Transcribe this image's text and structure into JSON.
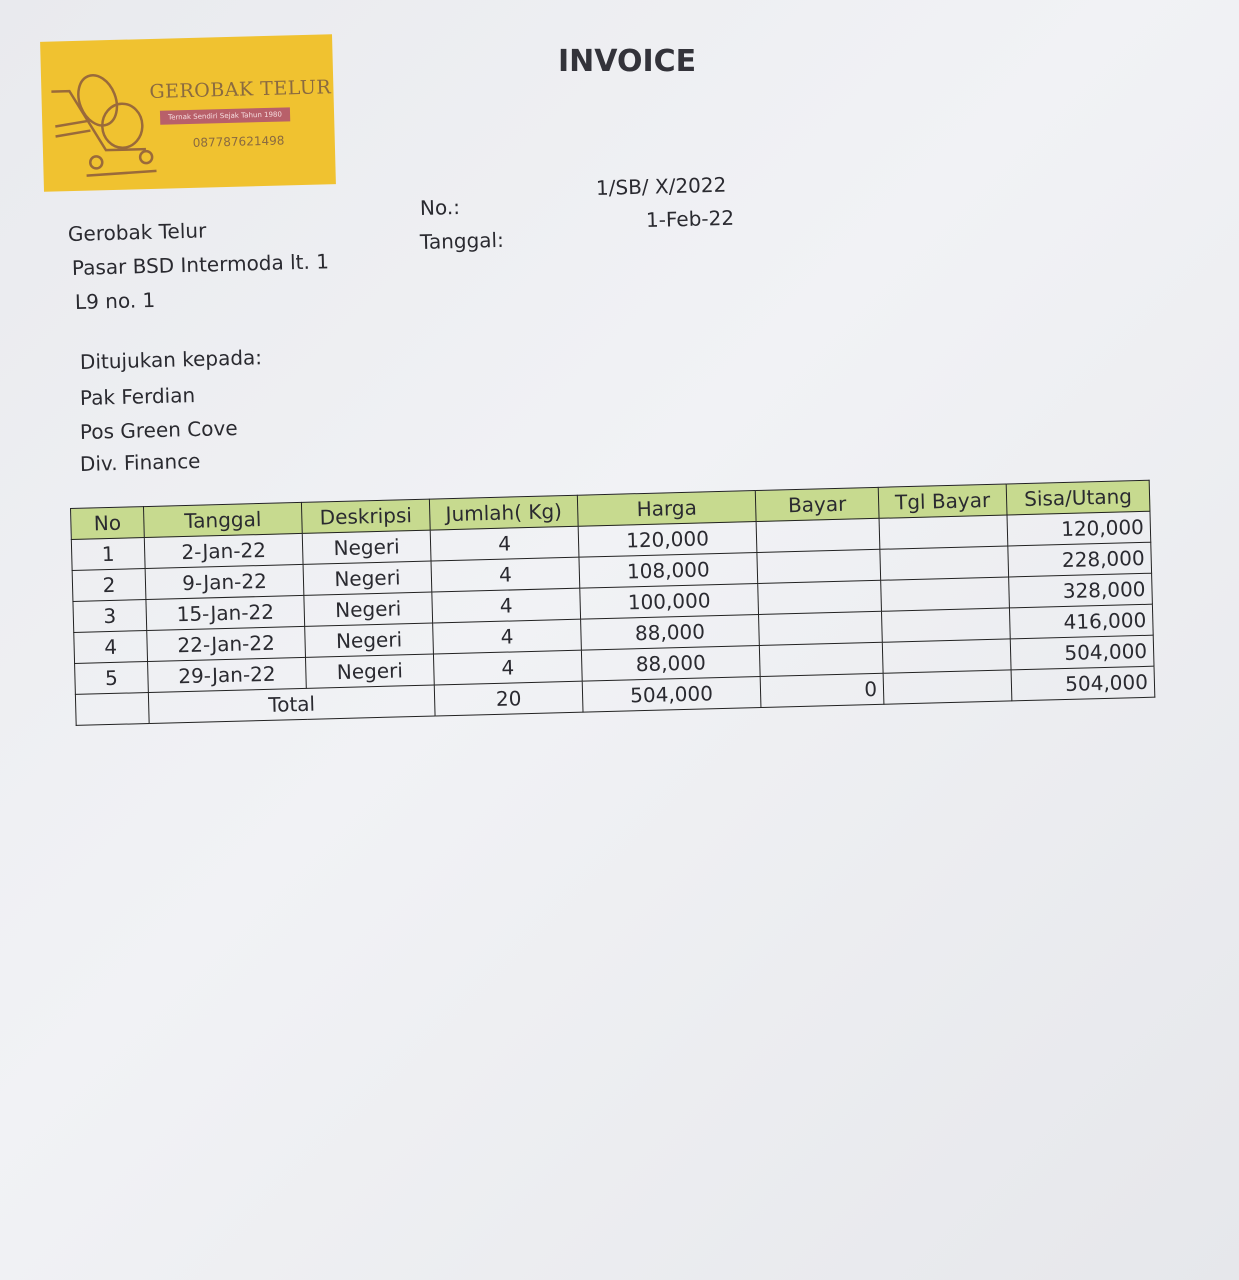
{
  "logo": {
    "name": "GEROBAK TELUR",
    "tagline": "Ternak Sendiri Sejak Tahun 1980",
    "phone": "087787621498",
    "color": "#f0c230"
  },
  "title": "INVOICE",
  "meta": {
    "no_label": "No.:",
    "no_value": "1/SB/ X/2022",
    "date_label": "Tanggal:",
    "date_value": "1-Feb-22"
  },
  "sender": {
    "name": "Gerobak Telur",
    "address1": "Pasar BSD Intermoda lt. 1",
    "address2": "L9 no. 1"
  },
  "recipient": {
    "label": "Ditujukan kepada:",
    "name": "Pak Ferdian",
    "company": "Pos Green Cove",
    "division": "Div. Finance"
  },
  "table": {
    "header_color": "#c7da8f",
    "columns": [
      "No",
      "Tanggal",
      "Deskripsi",
      "Jumlah( Kg)",
      "Harga",
      "Bayar",
      "Tgl Bayar",
      "Sisa/Utang"
    ],
    "rows": [
      [
        "1",
        "2-Jan-22",
        "Negeri",
        "4",
        "120,000",
        "",
        "",
        "120,000"
      ],
      [
        "2",
        "9-Jan-22",
        "Negeri",
        "4",
        "108,000",
        "",
        "",
        "228,000"
      ],
      [
        "3",
        "15-Jan-22",
        "Negeri",
        "4",
        "100,000",
        "",
        "",
        "328,000"
      ],
      [
        "4",
        "22-Jan-22",
        "Negeri",
        "4",
        "88,000",
        "",
        "",
        "416,000"
      ],
      [
        "5",
        "29-Jan-22",
        "Negeri",
        "4",
        "88,000",
        "",
        "",
        "504,000"
      ]
    ],
    "total": {
      "label": "Total",
      "jumlah": "20",
      "harga": "504,000",
      "bayar": "0",
      "sisa": "504,000"
    }
  }
}
